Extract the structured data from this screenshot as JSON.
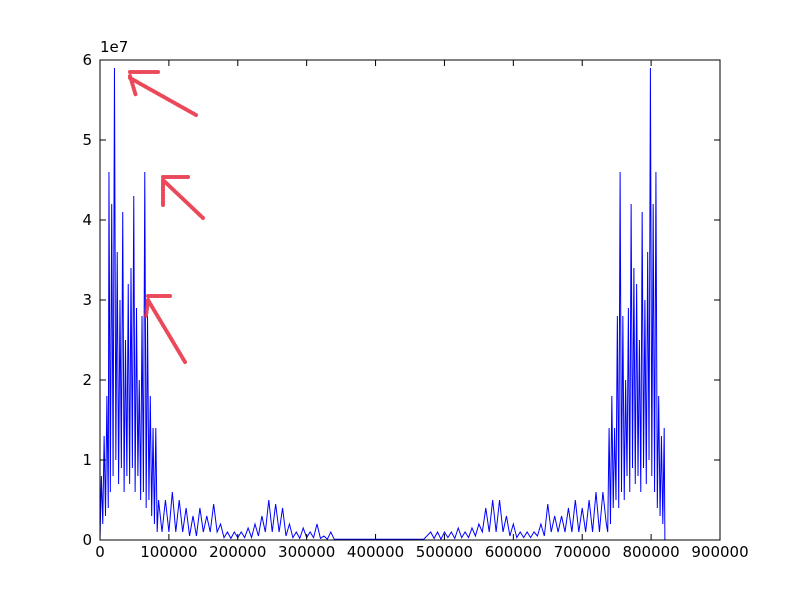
{
  "chart_data": {
    "type": "line",
    "y_offset_label": "1e7",
    "xlim": [
      0,
      900000
    ],
    "xticks": [
      0,
      100000,
      200000,
      300000,
      400000,
      500000,
      600000,
      700000,
      800000,
      900000
    ],
    "ylim": [
      0,
      60000000
    ],
    "yticks": [
      {
        "value": 0,
        "label": "0"
      },
      {
        "value": 10000000,
        "label": "1"
      },
      {
        "value": 20000000,
        "label": "2"
      },
      {
        "value": 30000000,
        "label": "3"
      },
      {
        "value": 40000000,
        "label": "4"
      },
      {
        "value": 50000000,
        "label": "5"
      },
      {
        "value": 60000000,
        "label": "6"
      }
    ],
    "color": "#0000ff",
    "x": [
      0,
      2000,
      4000,
      6000,
      8000,
      10000,
      12000,
      13000,
      15000,
      17000,
      19000,
      21000,
      23000,
      25000,
      27000,
      29000,
      31000,
      33000,
      35000,
      37000,
      39000,
      41000,
      43000,
      45000,
      47000,
      49000,
      51000,
      53000,
      55000,
      57000,
      59000,
      61000,
      63000,
      65000,
      67000,
      69000,
      71000,
      73000,
      75000,
      77000,
      79000,
      81000,
      83000,
      85000,
      90000,
      95000,
      100000,
      105000,
      110000,
      115000,
      120000,
      125000,
      130000,
      135000,
      140000,
      145000,
      150000,
      155000,
      160000,
      165000,
      170000,
      175000,
      180000,
      185000,
      190000,
      195000,
      200000,
      205000,
      210000,
      215000,
      220000,
      225000,
      230000,
      235000,
      240000,
      245000,
      250000,
      255000,
      260000,
      265000,
      270000,
      275000,
      280000,
      285000,
      290000,
      295000,
      300000,
      305000,
      310000,
      315000,
      320000,
      325000,
      330000,
      335000,
      340000,
      350000,
      400000,
      470000,
      480000,
      485000,
      490000,
      495000,
      500000,
      505000,
      510000,
      515000,
      520000,
      525000,
      530000,
      535000,
      540000,
      545000,
      550000,
      555000,
      560000,
      565000,
      570000,
      575000,
      580000,
      585000,
      590000,
      595000,
      600000,
      605000,
      610000,
      615000,
      620000,
      625000,
      630000,
      635000,
      640000,
      645000,
      650000,
      655000,
      660000,
      665000,
      670000,
      675000,
      680000,
      685000,
      690000,
      695000,
      700000,
      705000,
      710000,
      715000,
      720000,
      725000,
      730000,
      735000,
      737000,
      739000,
      741000,
      743000,
      745000,
      747000,
      749000,
      751000,
      753000,
      755000,
      757000,
      759000,
      761000,
      763000,
      765000,
      767000,
      769000,
      771000,
      773000,
      775000,
      777000,
      779000,
      781000,
      783000,
      785000,
      787000,
      789000,
      791000,
      793000,
      795000,
      797000,
      799000,
      801000,
      803000,
      805000,
      807000,
      809000,
      811000,
      813000,
      815000,
      817000,
      819000,
      820000
    ],
    "values": [
      0,
      8000000,
      2000000,
      13000000,
      3000000,
      18000000,
      4000000,
      46000000,
      6000000,
      42000000,
      8000000,
      59000000,
      10000000,
      36000000,
      7000000,
      30000000,
      9000000,
      41000000,
      6000000,
      25000000,
      8000000,
      32000000,
      7000000,
      34000000,
      9000000,
      43000000,
      6000000,
      29000000,
      8000000,
      20000000,
      5000000,
      28000000,
      6000000,
      46000000,
      4000000,
      28000000,
      5000000,
      18000000,
      3000000,
      14000000,
      2000000,
      14000000,
      1000000,
      5000000,
      1000000,
      5000000,
      1000000,
      6000000,
      1000000,
      5000000,
      1000000,
      4000000,
      500000,
      3000000,
      500000,
      4000000,
      1000000,
      3000000,
      1000000,
      4500000,
      1000000,
      2000000,
      300000,
      1000000,
      200000,
      1000000,
      300000,
      1000000,
      300000,
      1500000,
      300000,
      2000000,
      500000,
      3000000,
      1000000,
      5000000,
      1000000,
      4500000,
      1000000,
      4000000,
      500000,
      2000000,
      300000,
      1000000,
      200000,
      1500000,
      300000,
      1000000,
      300000,
      2000000,
      200000,
      500000,
      100000,
      1000000,
      100000,
      100000,
      100000,
      100000,
      1000000,
      200000,
      1000000,
      100000,
      1000000,
      300000,
      1000000,
      200000,
      1500000,
      300000,
      1000000,
      300000,
      1500000,
      500000,
      2000000,
      1000000,
      4000000,
      1000000,
      5000000,
      1000000,
      5000000,
      1000000,
      3000000,
      500000,
      2000000,
      300000,
      1000000,
      300000,
      1000000,
      300000,
      1000000,
      500000,
      2000000,
      500000,
      4500000,
      1000000,
      3000000,
      1000000,
      3000000,
      1000000,
      4000000,
      1000000,
      5000000,
      1000000,
      4000000,
      1000000,
      5000000,
      1000000,
      6000000,
      1000000,
      6000000,
      2000000,
      1000000,
      14000000,
      2000000,
      18000000,
      4000000,
      14000000,
      5000000,
      28000000,
      4000000,
      46000000,
      6000000,
      28000000,
      5000000,
      20000000,
      8000000,
      29000000,
      6000000,
      42000000,
      9000000,
      34000000,
      7000000,
      32000000,
      8000000,
      25000000,
      6000000,
      41000000,
      9000000,
      30000000,
      7000000,
      36000000,
      10000000,
      59000000,
      8000000,
      42000000,
      6000000,
      46000000,
      4000000,
      18000000,
      3000000,
      13000000,
      2000000,
      14000000,
      0
    ]
  }
}
